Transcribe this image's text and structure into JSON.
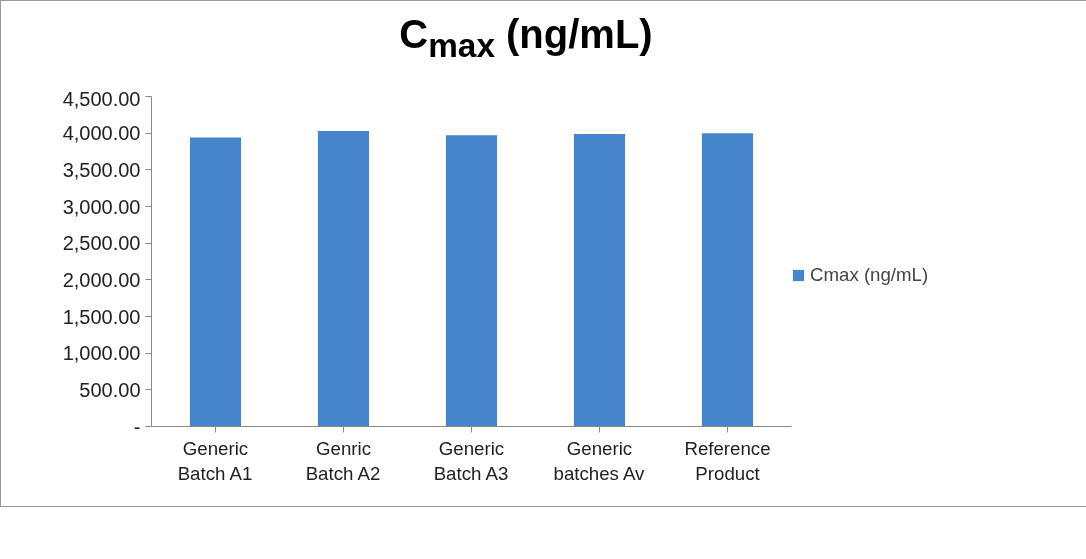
{
  "chart_data": {
    "type": "bar",
    "title": "C$_{max}$ (ng/mL)",
    "categories": [
      "Generic Batch A1",
      "Genric Batch A2",
      "Generic Batch A3",
      "Generic batches Av",
      "Reference Product"
    ],
    "series": [
      {
        "name": "Cmax (ng/mL)",
        "color": "#4485cc",
        "values": [
          3940,
          4030,
          3970,
          3990,
          4000
        ]
      }
    ],
    "ylim": [
      0,
      4500
    ],
    "yticks": [
      {
        "value": 0,
        "label": "-"
      },
      {
        "value": 500,
        "label": "500.00"
      },
      {
        "value": 1000,
        "label": "1,000.00"
      },
      {
        "value": 1500,
        "label": "1,500.00"
      },
      {
        "value": 2000,
        "label": "2,000.00"
      },
      {
        "value": 2500,
        "label": "2,500.00"
      },
      {
        "value": 3000,
        "label": "3,000.00"
      },
      {
        "value": 3500,
        "label": "3,500.00"
      },
      {
        "value": 4000,
        "label": "4,000.00"
      },
      {
        "value": 4500,
        "label": "4,500.00"
      }
    ],
    "grid": false,
    "legend": "right"
  }
}
